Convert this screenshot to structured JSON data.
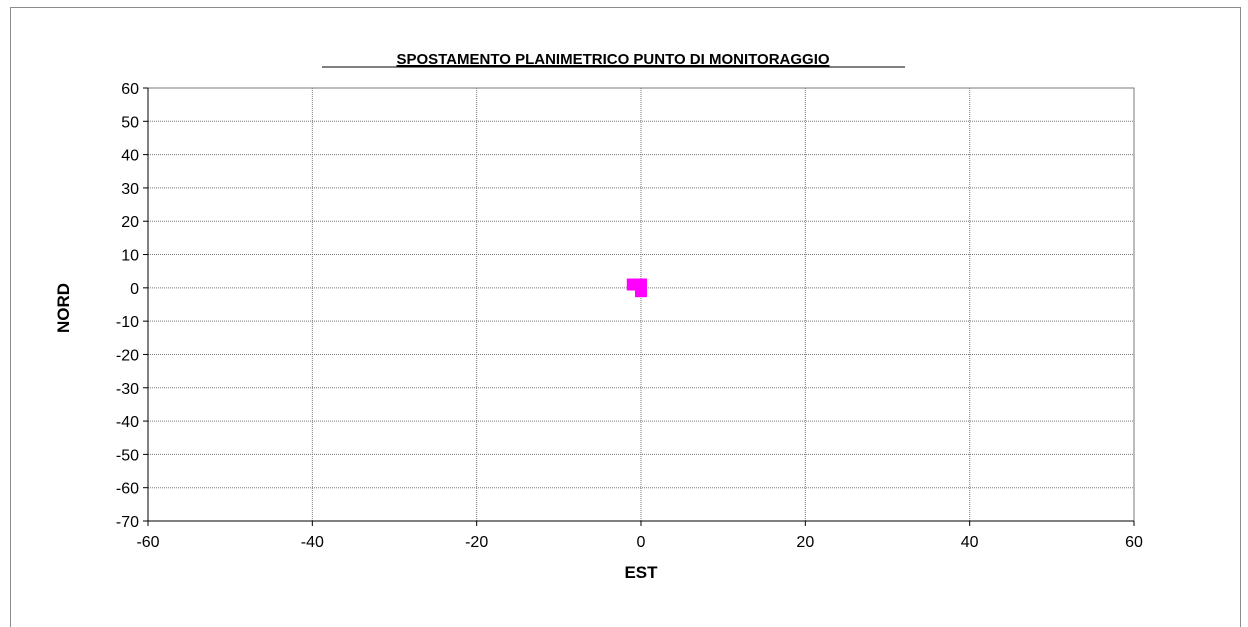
{
  "chart_data": {
    "type": "scatter",
    "title": "SPOSTAMENTO PLANIMETRICO PUNTO DI MONITORAGGIO",
    "xlabel": "EST",
    "ylabel": "NORD",
    "xlim": [
      -60,
      60
    ],
    "ylim": [
      -70,
      60
    ],
    "xticks": [
      -60,
      -40,
      -20,
      0,
      20,
      40,
      60
    ],
    "yticks": [
      60,
      50,
      40,
      30,
      20,
      10,
      0,
      -10,
      -20,
      -30,
      -40,
      -50,
      -60,
      -70
    ],
    "grid": true,
    "legend": "none",
    "series": [
      {
        "color": "#ff00ff",
        "marker": "square",
        "points": [
          {
            "x": -1,
            "y": 1
          },
          {
            "x": 0,
            "y": 1
          },
          {
            "x": 0,
            "y": 0
          },
          {
            "x": 0,
            "y": -1
          }
        ]
      }
    ]
  }
}
